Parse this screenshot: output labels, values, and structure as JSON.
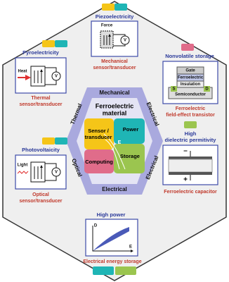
{
  "center": {
    "title_line1": "Ferroelectric",
    "title_line2": "material",
    "ring_labels": {
      "top": "Mechanical",
      "upper_left": "Thermal",
      "upper_right": "Electrical",
      "lower_left": "Optical",
      "lower_right": "Electrical",
      "bottom": "Electrical"
    },
    "quadrants": {
      "sensor_line1": "Sensor /",
      "sensor_line2": "transducer",
      "power": "Power",
      "storage": "Storage",
      "computing": "Computing",
      "field": "E"
    }
  },
  "panels": {
    "piezo": {
      "effect": "Piezoelectricity",
      "force": "Force",
      "meter": "V",
      "application_line1": "Mechanical",
      "application_line2": "sensor/transducer"
    },
    "pyro": {
      "effect": "Pyroelectricity",
      "heat": "Heat",
      "meter": "V",
      "application_line1": "Thermal",
      "application_line2": "sensor/transducer"
    },
    "photo": {
      "effect": "Photovoltaicity",
      "light": "Light",
      "meter": "V",
      "application_line1": "Optical",
      "application_line2": "sensor/transducer"
    },
    "fefet": {
      "effect": "Nonvolatile storage",
      "gate": "Gate",
      "ferroelectric": "Ferroelectric",
      "insulation": "Insulation",
      "source": "S",
      "drain": "D",
      "semiconductor": "Semiconductor",
      "application_line1": "Ferroelectric",
      "application_line2": "field-effect transistor"
    },
    "capacitor": {
      "effect_line1": "High",
      "effect_line2": "dielectric permitivity",
      "minus": "–",
      "plus": "+",
      "application": "Ferroelectric capacitor"
    },
    "energy": {
      "effect": "High power",
      "y_axis": "D",
      "x_axis": "E",
      "application": "Electrical energy storage"
    }
  }
}
